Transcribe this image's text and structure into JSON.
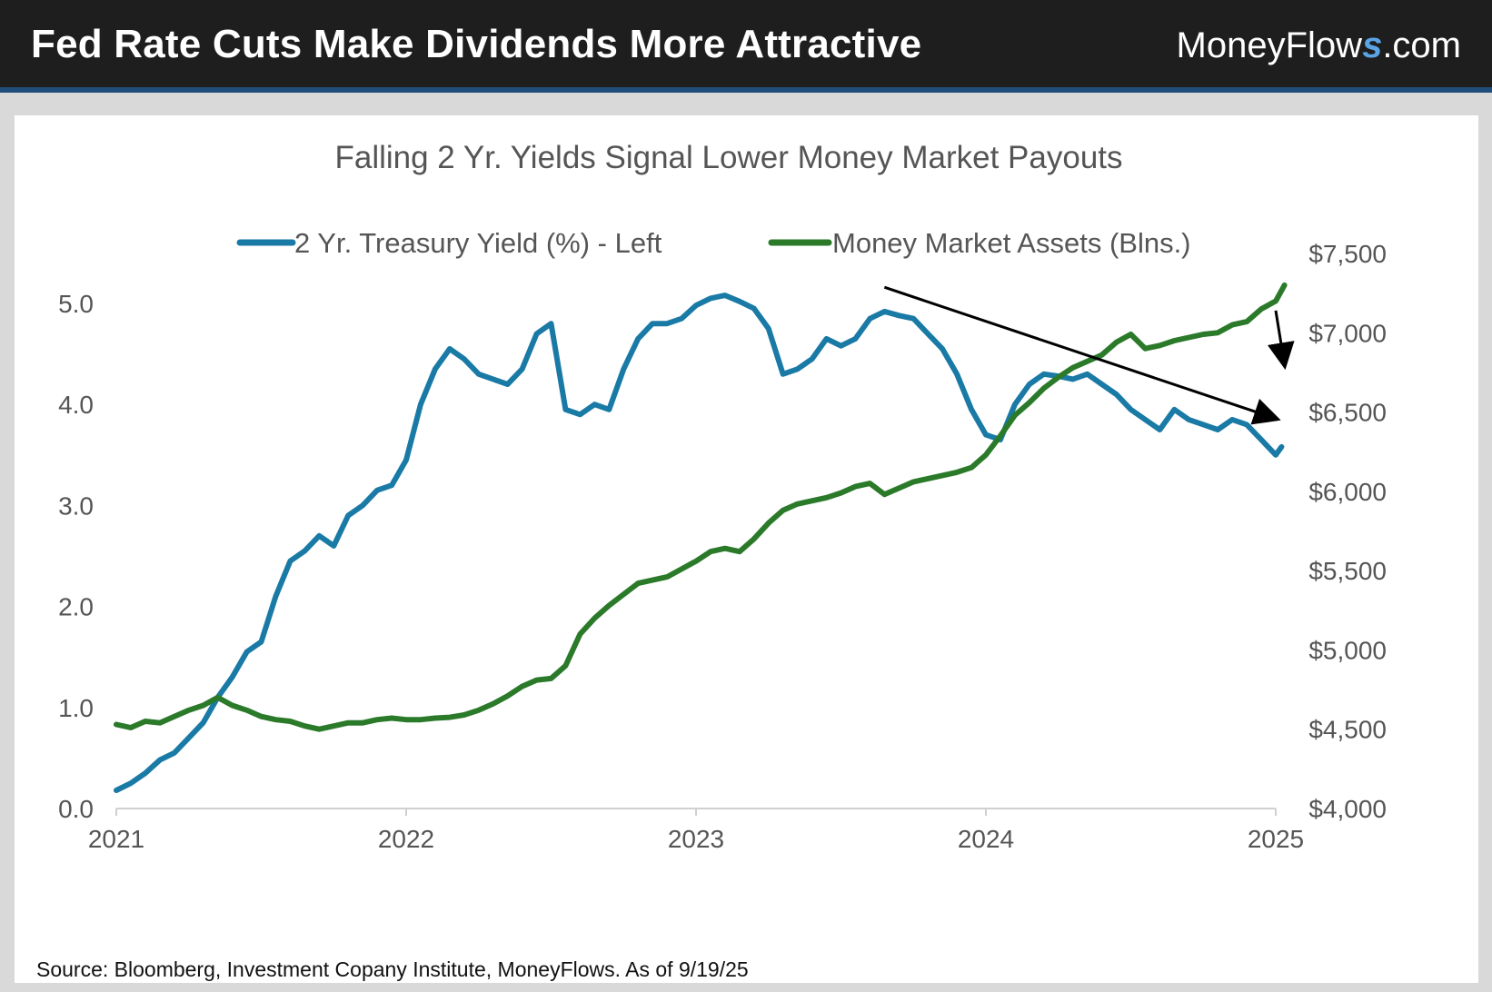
{
  "header": {
    "title": "Fed Rate Cuts Make Dividends More Attractive",
    "brand_prefix": "MoneyFlow",
    "brand_s": "s",
    "brand_suffix": ".com"
  },
  "source_note": "Source: Bloomberg, Investment Copany Institute, MoneyFlows. As of 9/19/25",
  "colors": {
    "yield_line": "#1a7aa6",
    "assets_line": "#2a7a2a",
    "header_bg": "#1e1e1e",
    "header_rule": "#1f4e7a"
  },
  "chart_data": {
    "type": "line",
    "title": "Falling 2 Yr. Yields Signal Lower Money Market Payouts",
    "legend": {
      "placement": "top"
    },
    "grid": false,
    "x_axis": {
      "range": [
        2021.0,
        2025.0
      ],
      "ticks": [
        "2021",
        "2022",
        "2023",
        "2024",
        "2025"
      ]
    },
    "y_left": {
      "range": [
        0,
        5.0
      ],
      "ticks": [
        "0.0",
        "1.0",
        "2.0",
        "3.0",
        "4.0",
        "5.0"
      ]
    },
    "y_right": {
      "range": [
        4000,
        7500
      ],
      "ticks": [
        "$4,000",
        "$4,500",
        "$5,000",
        "$5,500",
        "$6,000",
        "$6,500",
        "$7,000",
        "$7,500"
      ]
    },
    "series": [
      {
        "name": "2 Yr. Treasury Yield (%) - Left",
        "axis": "left",
        "points": [
          [
            2021.0,
            0.18
          ],
          [
            2021.05,
            0.25
          ],
          [
            2021.1,
            0.35
          ],
          [
            2021.15,
            0.48
          ],
          [
            2021.2,
            0.55
          ],
          [
            2021.25,
            0.7
          ],
          [
            2021.3,
            0.85
          ],
          [
            2021.35,
            1.1
          ],
          [
            2021.4,
            1.3
          ],
          [
            2021.45,
            1.55
          ],
          [
            2021.5,
            1.65
          ],
          [
            2021.55,
            2.1
          ],
          [
            2021.6,
            2.45
          ],
          [
            2021.65,
            2.55
          ],
          [
            2021.7,
            2.7
          ],
          [
            2021.75,
            2.6
          ],
          [
            2021.8,
            2.9
          ],
          [
            2021.85,
            3.0
          ],
          [
            2021.9,
            3.15
          ],
          [
            2021.95,
            3.2
          ],
          [
            2022.0,
            3.45
          ],
          [
            2022.05,
            4.0
          ],
          [
            2022.1,
            4.35
          ],
          [
            2022.15,
            4.55
          ],
          [
            2022.2,
            4.45
          ],
          [
            2022.25,
            4.3
          ],
          [
            2022.3,
            4.25
          ],
          [
            2022.35,
            4.2
          ],
          [
            2022.4,
            4.35
          ],
          [
            2022.45,
            4.7
          ],
          [
            2022.5,
            4.8
          ],
          [
            2022.55,
            3.95
          ],
          [
            2022.6,
            3.9
          ],
          [
            2022.65,
            4.0
          ],
          [
            2022.7,
            3.95
          ],
          [
            2022.75,
            4.35
          ],
          [
            2022.8,
            4.65
          ],
          [
            2022.85,
            4.8
          ],
          [
            2022.9,
            4.8
          ],
          [
            2022.95,
            4.85
          ],
          [
            2023.0,
            4.98
          ],
          [
            2023.05,
            5.05
          ],
          [
            2023.1,
            5.08
          ],
          [
            2023.15,
            5.02
          ],
          [
            2023.2,
            4.95
          ],
          [
            2023.25,
            4.75
          ],
          [
            2023.3,
            4.3
          ],
          [
            2023.35,
            4.35
          ],
          [
            2023.4,
            4.45
          ],
          [
            2023.45,
            4.65
          ],
          [
            2023.5,
            4.58
          ],
          [
            2023.55,
            4.65
          ],
          [
            2023.6,
            4.85
          ],
          [
            2023.65,
            4.92
          ],
          [
            2023.7,
            4.88
          ],
          [
            2023.75,
            4.85
          ],
          [
            2023.8,
            4.7
          ],
          [
            2023.85,
            4.55
          ],
          [
            2023.9,
            4.3
          ],
          [
            2023.95,
            3.95
          ],
          [
            2024.0,
            3.7
          ],
          [
            2024.05,
            3.65
          ],
          [
            2024.1,
            4.0
          ],
          [
            2024.15,
            4.2
          ],
          [
            2024.2,
            4.3
          ],
          [
            2024.25,
            4.28
          ],
          [
            2024.3,
            4.25
          ],
          [
            2024.35,
            4.3
          ],
          [
            2024.4,
            4.2
          ],
          [
            2024.45,
            4.1
          ],
          [
            2024.5,
            3.95
          ],
          [
            2024.55,
            3.85
          ],
          [
            2024.6,
            3.75
          ],
          [
            2024.65,
            3.95
          ],
          [
            2024.7,
            3.85
          ],
          [
            2024.75,
            3.8
          ],
          [
            2024.8,
            3.75
          ],
          [
            2024.85,
            3.85
          ],
          [
            2024.9,
            3.8
          ],
          [
            2024.95,
            3.65
          ],
          [
            2025.0,
            3.5
          ],
          [
            2025.02,
            3.58
          ]
        ]
      },
      {
        "name": "Money Market Assets (Blns.)",
        "axis": "right",
        "points": [
          [
            2021.0,
            4530
          ],
          [
            2021.05,
            4510
          ],
          [
            2021.1,
            4550
          ],
          [
            2021.15,
            4540
          ],
          [
            2021.2,
            4580
          ],
          [
            2021.25,
            4620
          ],
          [
            2021.3,
            4650
          ],
          [
            2021.35,
            4700
          ],
          [
            2021.4,
            4650
          ],
          [
            2021.45,
            4620
          ],
          [
            2021.5,
            4580
          ],
          [
            2021.55,
            4560
          ],
          [
            2021.6,
            4550
          ],
          [
            2021.65,
            4520
          ],
          [
            2021.7,
            4500
          ],
          [
            2021.75,
            4520
          ],
          [
            2021.8,
            4540
          ],
          [
            2021.85,
            4540
          ],
          [
            2021.9,
            4560
          ],
          [
            2021.95,
            4570
          ],
          [
            2022.0,
            4560
          ],
          [
            2022.05,
            4560
          ],
          [
            2022.1,
            4570
          ],
          [
            2022.15,
            4575
          ],
          [
            2022.2,
            4590
          ],
          [
            2022.25,
            4620
          ],
          [
            2022.3,
            4660
          ],
          [
            2022.35,
            4710
          ],
          [
            2022.4,
            4770
          ],
          [
            2022.45,
            4810
          ],
          [
            2022.5,
            4820
          ],
          [
            2022.55,
            4900
          ],
          [
            2022.6,
            5100
          ],
          [
            2022.65,
            5200
          ],
          [
            2022.7,
            5280
          ],
          [
            2022.75,
            5350
          ],
          [
            2022.8,
            5420
          ],
          [
            2022.85,
            5440
          ],
          [
            2022.9,
            5460
          ],
          [
            2022.95,
            5510
          ],
          [
            2023.0,
            5560
          ],
          [
            2023.05,
            5620
          ],
          [
            2023.1,
            5640
          ],
          [
            2023.15,
            5620
          ],
          [
            2023.2,
            5700
          ],
          [
            2023.25,
            5800
          ],
          [
            2023.3,
            5880
          ],
          [
            2023.35,
            5920
          ],
          [
            2023.4,
            5940
          ],
          [
            2023.45,
            5960
          ],
          [
            2023.5,
            5990
          ],
          [
            2023.55,
            6030
          ],
          [
            2023.6,
            6050
          ],
          [
            2023.65,
            5980
          ],
          [
            2023.7,
            6020
          ],
          [
            2023.75,
            6060
          ],
          [
            2023.8,
            6080
          ],
          [
            2023.85,
            6100
          ],
          [
            2023.9,
            6120
          ],
          [
            2023.95,
            6150
          ],
          [
            2024.0,
            6230
          ],
          [
            2024.05,
            6350
          ],
          [
            2024.1,
            6480
          ],
          [
            2024.15,
            6560
          ],
          [
            2024.2,
            6650
          ],
          [
            2024.25,
            6720
          ],
          [
            2024.3,
            6780
          ],
          [
            2024.35,
            6820
          ],
          [
            2024.4,
            6860
          ],
          [
            2024.45,
            6940
          ],
          [
            2024.5,
            6990
          ],
          [
            2024.55,
            6900
          ],
          [
            2024.6,
            6920
          ],
          [
            2024.65,
            6950
          ],
          [
            2024.7,
            6970
          ],
          [
            2024.75,
            6990
          ],
          [
            2024.8,
            7000
          ],
          [
            2024.85,
            7050
          ],
          [
            2024.9,
            7070
          ],
          [
            2024.95,
            7150
          ],
          [
            2025.0,
            7200
          ],
          [
            2025.03,
            7300
          ]
        ]
      }
    ],
    "annotations": [
      {
        "type": "arrow",
        "from": [
          2023.65,
          5.16
        ],
        "to": [
          2025.0,
          3.86
        ],
        "axis": "left"
      },
      {
        "type": "arrow",
        "from": [
          2025.0,
          7140
        ],
        "to": [
          2025.03,
          6800
        ],
        "axis": "right"
      }
    ]
  }
}
